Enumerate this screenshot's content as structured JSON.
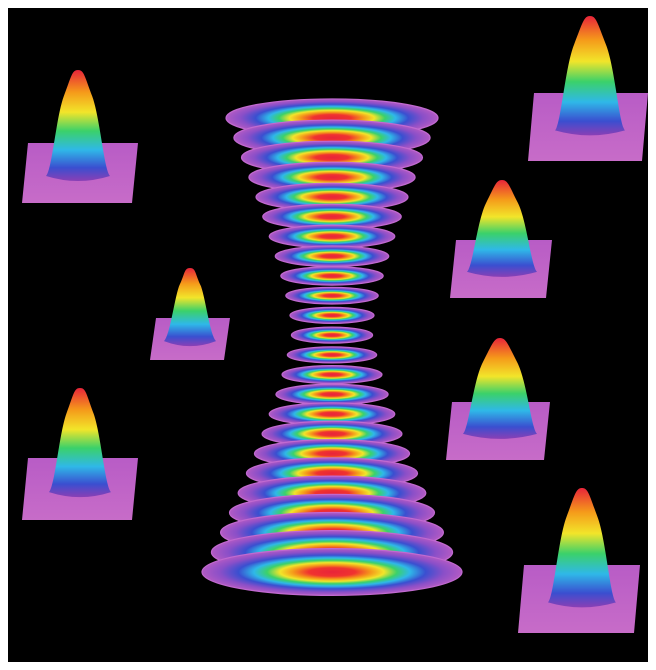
{
  "figure": {
    "background_color": "#000000",
    "frame_color": "#ffffff",
    "pad_color": "#c05bc4",
    "ring_count": 24,
    "peak_count": 7,
    "colormap": [
      "#8a3fb5",
      "#3a4fd0",
      "#2fb8e8",
      "#3bd16a",
      "#f2e52a",
      "#f59a1a",
      "#e8243a"
    ]
  }
}
